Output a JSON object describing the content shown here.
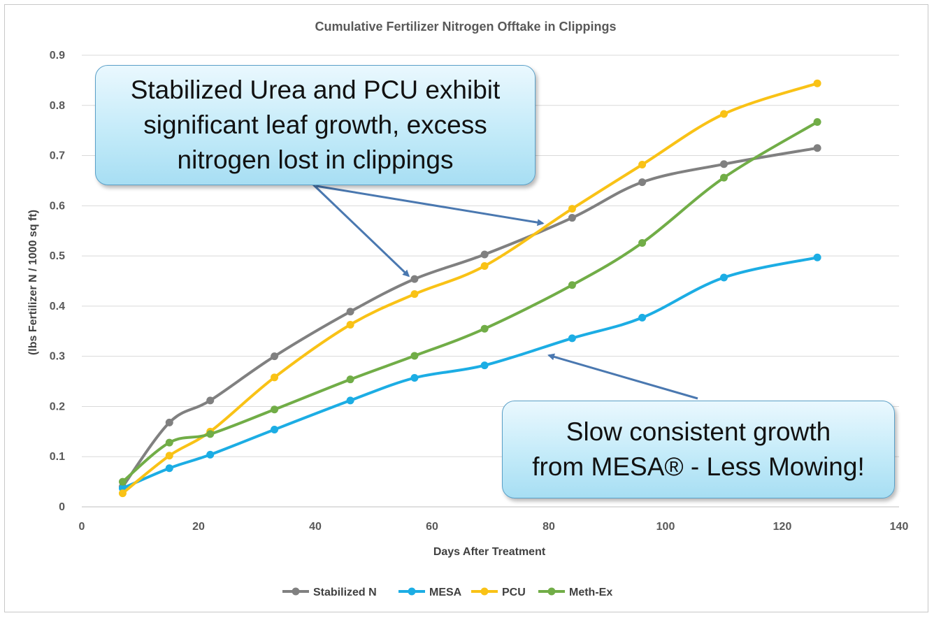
{
  "chart_data": {
    "type": "line",
    "title": "Cumulative Fertilizer Nitrogen Offtake in Clippings",
    "xlabel": "Days After Treatment",
    "ylabel": "(lbs Fertilizer N / 1000 sq ft)",
    "xlim": [
      0,
      140
    ],
    "ylim": [
      0,
      0.9
    ],
    "xticks": [
      "0",
      "20",
      "40",
      "60",
      "80",
      "100",
      "120",
      "140"
    ],
    "yticks": [
      "0",
      "0.1",
      "0.2",
      "0.3",
      "0.4",
      "0.5",
      "0.6",
      "0.7",
      "0.8",
      "0.9"
    ],
    "grid": "horizontal",
    "legend_position": "bottom",
    "smooth": true,
    "series": [
      {
        "name": "Stabilized N",
        "color": "#808080",
        "x": [
          7,
          15,
          22,
          33,
          46,
          57,
          69,
          84,
          96,
          110,
          126
        ],
        "y": [
          0.04,
          0.168,
          0.212,
          0.3,
          0.389,
          0.454,
          0.503,
          0.576,
          0.647,
          0.683,
          0.715
        ]
      },
      {
        "name": "MESA",
        "color": "#1cade4",
        "x": [
          7,
          15,
          22,
          33,
          46,
          57,
          69,
          84,
          96,
          110,
          126
        ],
        "y": [
          0.037,
          0.077,
          0.104,
          0.154,
          0.212,
          0.257,
          0.282,
          0.336,
          0.377,
          0.457,
          0.497
        ]
      },
      {
        "name": "PCU",
        "color": "#f9c216",
        "x": [
          7,
          15,
          22,
          33,
          46,
          57,
          69,
          84,
          96,
          110,
          126
        ],
        "y": [
          0.027,
          0.102,
          0.15,
          0.258,
          0.363,
          0.424,
          0.48,
          0.594,
          0.682,
          0.783,
          0.844
        ]
      },
      {
        "name": "Meth-Ex",
        "color": "#71ad47",
        "x": [
          7,
          15,
          22,
          33,
          46,
          57,
          69,
          84,
          96,
          110,
          126
        ],
        "y": [
          0.05,
          0.128,
          0.145,
          0.194,
          0.254,
          0.301,
          0.355,
          0.442,
          0.526,
          0.656,
          0.767
        ]
      }
    ],
    "annotations": [
      {
        "text": "Stabilized Urea and PCU exhibit significant leaf growth, excess nitrogen lost in clippings",
        "lines": [
          "Stabilized Urea and PCU exhibit",
          "significant leaf growth, excess",
          "nitrogen lost in clippings"
        ],
        "arrow_targets": [
          [
            56,
            0.46
          ],
          [
            79,
            0.565
          ]
        ]
      },
      {
        "text": "Slow consistent growth from MESA® - Less Mowing!",
        "lines": [
          "Slow consistent growth",
          "from MESA® - Less Mowing!"
        ],
        "arrow_targets": [
          [
            80,
            0.302
          ]
        ]
      }
    ]
  }
}
